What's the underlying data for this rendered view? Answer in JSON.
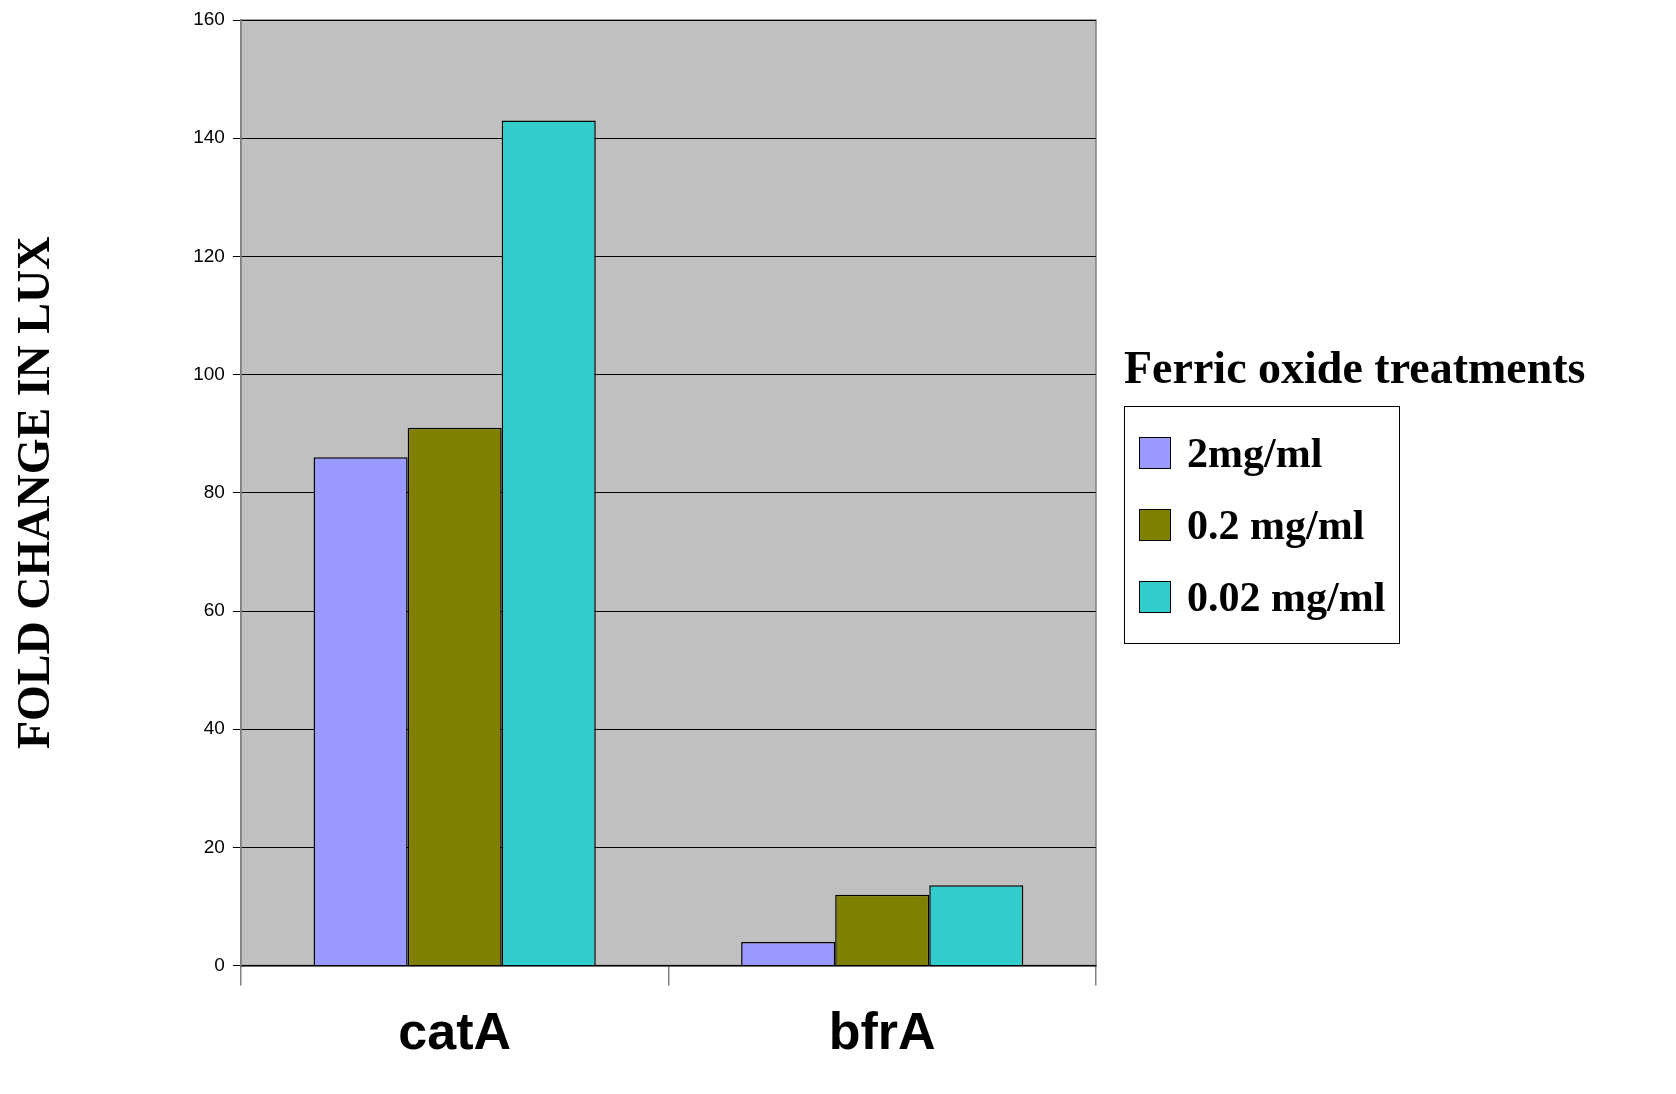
{
  "chart_data": {
    "type": "bar",
    "ylabel": "FOLD CHANGE IN LUX",
    "legend_title": "Ferric oxide treatments",
    "categories": [
      "catA",
      "bfrA"
    ],
    "series": [
      {
        "name": "2mg/ml",
        "color": "#9999ff",
        "values": [
          86,
          4
        ]
      },
      {
        "name": "0.2 mg/ml",
        "color": "#808000",
        "values": [
          91,
          12
        ]
      },
      {
        "name": "0.02 mg/ml",
        "color": "#33cccc",
        "values": [
          143,
          13.6
        ]
      }
    ],
    "ylim": [
      0,
      160
    ],
    "yticks": [
      0,
      20,
      40,
      60,
      80,
      100,
      120,
      140,
      160
    ],
    "grid": "y",
    "legend": "right"
  }
}
